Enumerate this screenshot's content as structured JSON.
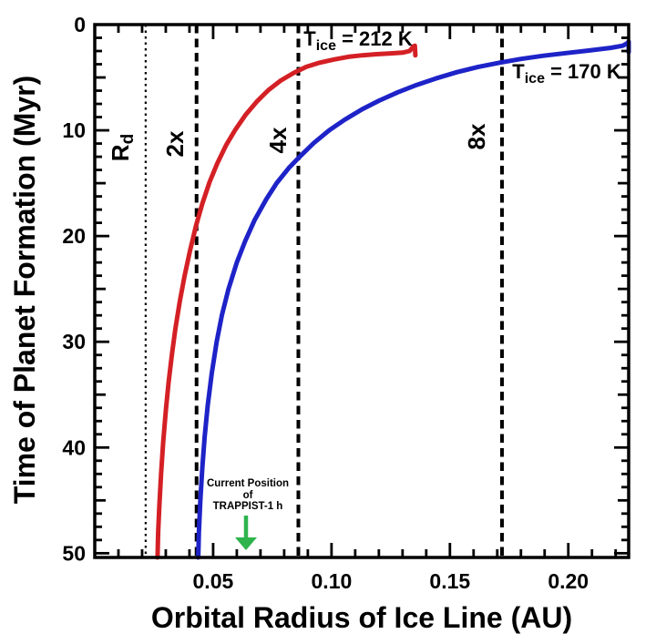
{
  "chart_data": {
    "type": "line",
    "title": "",
    "xlabel": "Orbital Radius of Ice Line (AU)",
    "ylabel": "Time of Planet Formation (Myr)",
    "xlim": [
      0,
      0.2255
    ],
    "ylim": [
      0,
      50.4
    ],
    "y_axis_direction": "inverted (0 Myr at top, 50 Myr at bottom)",
    "grid": false,
    "legend_position": "labels beside curves",
    "x_ticks": {
      "major_values": [
        0.05,
        0.1,
        0.15,
        0.2
      ],
      "labels": [
        "0.05",
        "0.10",
        "0.15",
        "0.20"
      ],
      "minor_step": 0.01
    },
    "y_ticks": {
      "major_values": [
        0,
        10,
        20,
        30,
        40,
        50
      ],
      "labels": [
        "0",
        "10",
        "20",
        "30",
        "40",
        "50"
      ],
      "medium_step": 5,
      "minor_step": 1.25
    },
    "series": [
      {
        "id": "t212",
        "name": "T_ice = 212 K",
        "color": "#d42025",
        "label": {
          "prefix": "T",
          "sub": "ice",
          "rest": " = 212 K"
        },
        "points": [
          [
            0.0265,
            50.4
          ],
          [
            0.0268,
            48
          ],
          [
            0.0273,
            45.5
          ],
          [
            0.028,
            42.5
          ],
          [
            0.0289,
            39.5
          ],
          [
            0.03,
            36.5
          ],
          [
            0.0312,
            33.8
          ],
          [
            0.0326,
            31.2
          ],
          [
            0.0341,
            28.7
          ],
          [
            0.0359,
            26.2
          ],
          [
            0.0379,
            23.8
          ],
          [
            0.0402,
            21.4
          ],
          [
            0.0428,
            19.0
          ],
          [
            0.0455,
            16.9
          ],
          [
            0.0485,
            14.9
          ],
          [
            0.0518,
            13.1
          ],
          [
            0.0555,
            11.4
          ],
          [
            0.0595,
            9.9
          ],
          [
            0.0638,
            8.5
          ],
          [
            0.0684,
            7.3
          ],
          [
            0.0733,
            6.2
          ],
          [
            0.0785,
            5.3
          ],
          [
            0.0838,
            4.6
          ],
          [
            0.0893,
            4.0
          ],
          [
            0.095,
            3.6
          ],
          [
            0.101,
            3.3
          ],
          [
            0.107,
            3.05
          ],
          [
            0.113,
            2.9
          ],
          [
            0.119,
            2.8
          ],
          [
            0.125,
            2.72
          ],
          [
            0.13,
            2.65
          ],
          [
            0.133,
            2.5
          ],
          [
            0.1344,
            2.1
          ],
          [
            0.1352,
            2.0
          ],
          [
            0.1354,
            2.9
          ]
        ]
      },
      {
        "id": "t170",
        "name": "T_ice = 170 K",
        "color": "#1e23c8",
        "label": {
          "prefix": "T",
          "sub": "ice",
          "rest": " = 170 K"
        },
        "points": [
          [
            0.0437,
            50.4
          ],
          [
            0.044,
            48
          ],
          [
            0.0446,
            45
          ],
          [
            0.0454,
            42
          ],
          [
            0.0464,
            39
          ],
          [
            0.0477,
            36
          ],
          [
            0.0494,
            33
          ],
          [
            0.0515,
            30
          ],
          [
            0.0537,
            27.5
          ],
          [
            0.0565,
            25
          ],
          [
            0.06,
            22.5
          ],
          [
            0.0635,
            20.5
          ],
          [
            0.0675,
            18.5
          ],
          [
            0.0725,
            16.5
          ],
          [
            0.0768,
            15
          ],
          [
            0.0822,
            13.5
          ],
          [
            0.087,
            12.4
          ],
          [
            0.0925,
            11.2
          ],
          [
            0.099,
            10
          ],
          [
            0.1055,
            9
          ],
          [
            0.113,
            8
          ],
          [
            0.12,
            7.2
          ],
          [
            0.128,
            6.4
          ],
          [
            0.136,
            5.7
          ],
          [
            0.144,
            5.1
          ],
          [
            0.153,
            4.5
          ],
          [
            0.162,
            4.0
          ],
          [
            0.171,
            3.6
          ],
          [
            0.18,
            3.25
          ],
          [
            0.1895,
            2.95
          ],
          [
            0.199,
            2.7
          ],
          [
            0.209,
            2.45
          ],
          [
            0.218,
            2.2
          ],
          [
            0.223,
            2.0
          ],
          [
            0.225,
            1.75
          ],
          [
            0.2255,
            1.6
          ],
          [
            0.2255,
            2.6
          ]
        ]
      }
    ],
    "vlines": [
      {
        "id": "rd",
        "x": 0.0215,
        "style": "dotted",
        "label": {
          "prefix": "R",
          "sub": "d",
          "rest": ""
        }
      },
      {
        "id": "2x",
        "x": 0.043,
        "style": "dashed",
        "label": {
          "prefix": "2x",
          "sub": "",
          "rest": ""
        }
      },
      {
        "id": "4x",
        "x": 0.086,
        "style": "dashed",
        "label": {
          "prefix": "4x",
          "sub": "",
          "rest": ""
        }
      },
      {
        "id": "8x",
        "x": 0.172,
        "style": "dashed",
        "label": {
          "prefix": "8x",
          "sub": "",
          "rest": ""
        }
      }
    ],
    "annotation": {
      "lines": [
        "Current Position",
        "of",
        "TRAPPIST-1 h"
      ],
      "color": "#2fb34c",
      "arrow_points_to_au": 0.0635
    }
  }
}
